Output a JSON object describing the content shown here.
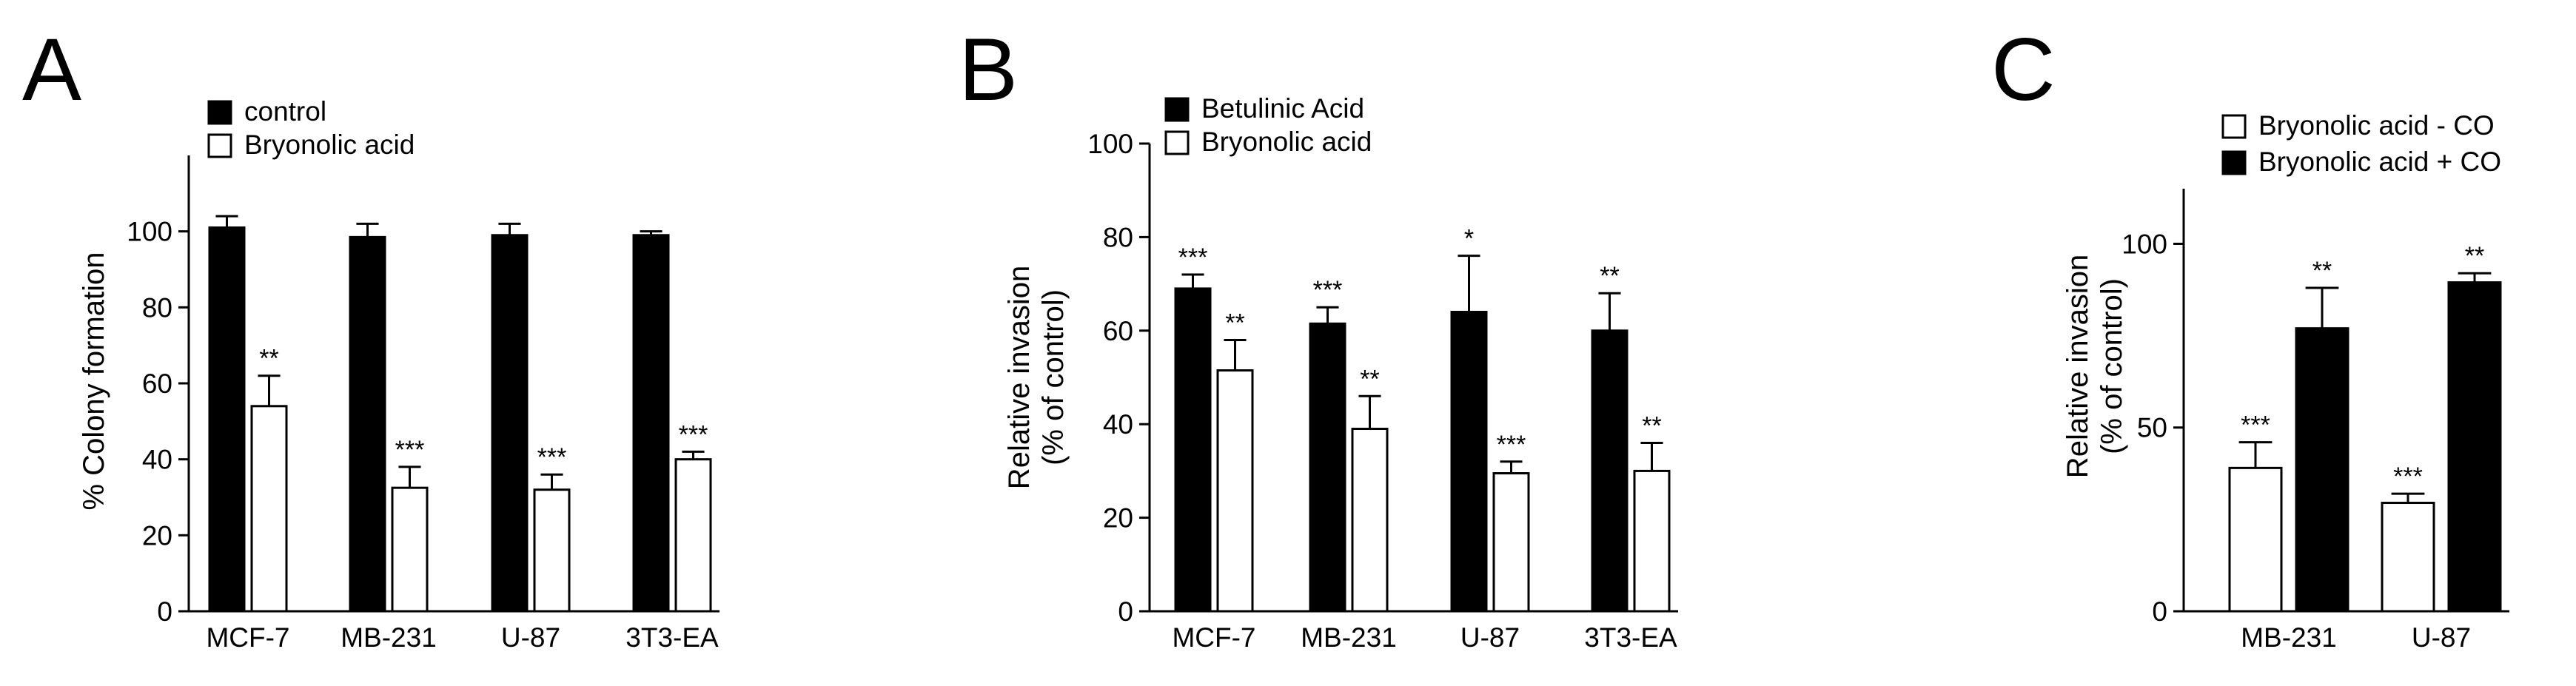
{
  "chart_data": [
    {
      "type": "bar",
      "panel_label": "A",
      "categories": [
        "MCF-7",
        "MB-231",
        "U-87",
        "3T3-EA"
      ],
      "ylabel": "% Colony formation",
      "ylim": [
        0,
        120
      ],
      "yticks": [
        0,
        20,
        40,
        60,
        80,
        100
      ],
      "legend_position": "top-left",
      "series": [
        {
          "name": "control",
          "fill": "#000000",
          "values": [
            101,
            98.5,
            99,
            99
          ],
          "errors": [
            3,
            3.5,
            3,
            1
          ],
          "significance": [
            "",
            "",
            "",
            ""
          ]
        },
        {
          "name": "Bryonolic acid",
          "fill": "#ffffff",
          "values": [
            54,
            32.5,
            32,
            40
          ],
          "errors": [
            8,
            5.5,
            4,
            2
          ],
          "significance": [
            "**",
            "***",
            "***",
            "***"
          ]
        }
      ]
    },
    {
      "type": "bar",
      "panel_label": "B",
      "categories": [
        "MCF-7",
        "MB-231",
        "U-87",
        "3T3-EA"
      ],
      "ylabel": [
        "Relative invasion",
        "(% of control)"
      ],
      "ylim": [
        0,
        100
      ],
      "yticks": [
        0,
        20,
        40,
        60,
        80,
        100
      ],
      "legend_position": "top-left",
      "series": [
        {
          "name": "Betulinic Acid",
          "fill": "#000000",
          "values": [
            69,
            61.5,
            64,
            60
          ],
          "errors": [
            3,
            3.5,
            12,
            8
          ],
          "significance": [
            "***",
            "***",
            "*",
            "**"
          ]
        },
        {
          "name": "Bryonolic acid",
          "fill": "#ffffff",
          "values": [
            51.5,
            39,
            29.5,
            30
          ],
          "errors": [
            6.5,
            7,
            2.5,
            6
          ],
          "significance": [
            "**",
            "**",
            "***",
            "**"
          ]
        }
      ]
    },
    {
      "type": "bar",
      "panel_label": "C",
      "categories": [
        "MB-231",
        "U-87"
      ],
      "ylabel": [
        "Relative invasion",
        "(% of control)"
      ],
      "ylim": [
        0,
        115
      ],
      "yticks": [
        0,
        50,
        100
      ],
      "legend_position": "top-left",
      "series": [
        {
          "name": "Bryonolic acid - CO",
          "fill": "#ffffff",
          "values": [
            39,
            29.5
          ],
          "errors": [
            7,
            2.5
          ],
          "significance": [
            "***",
            "***"
          ]
        },
        {
          "name": "Bryonolic acid + CO",
          "fill": "#000000",
          "values": [
            77,
            89.5
          ],
          "errors": [
            11,
            2.5
          ],
          "significance": [
            "**",
            "**"
          ]
        }
      ]
    }
  ]
}
